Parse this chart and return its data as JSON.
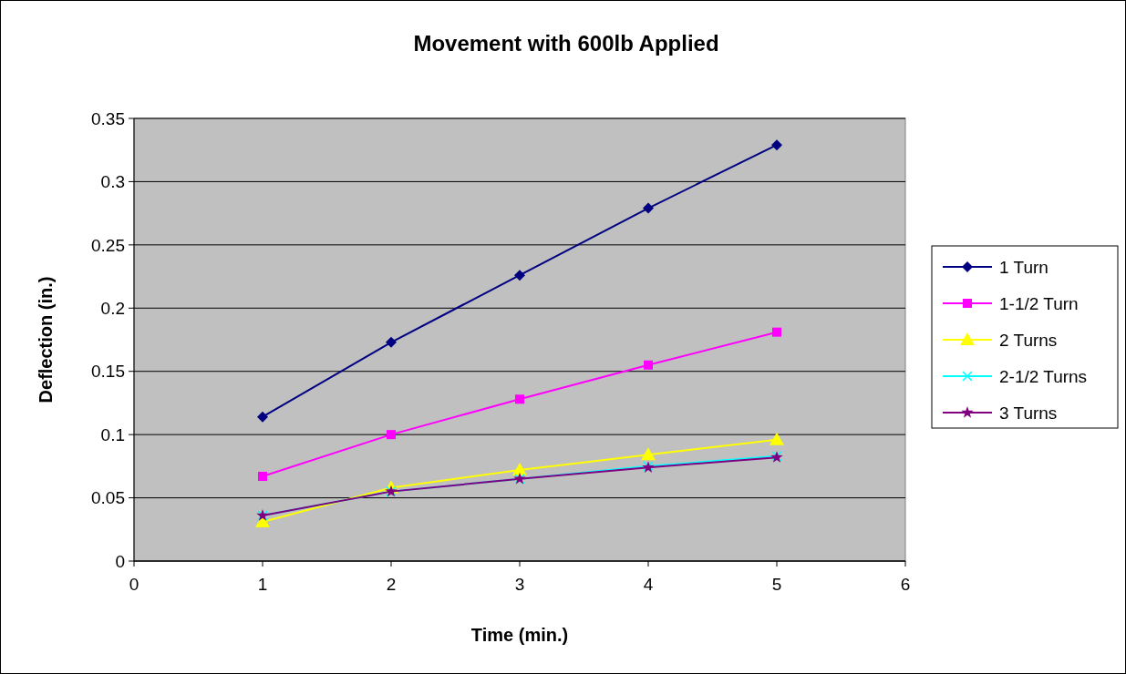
{
  "chart_data": {
    "type": "line",
    "title": "Movement with 600lb Applied",
    "xlabel": "Time (min.)",
    "ylabel": "Deflection (in.)",
    "x": [
      1,
      2,
      3,
      4,
      5
    ],
    "xlim": [
      0,
      6
    ],
    "xticks": [
      0,
      1,
      2,
      3,
      4,
      5,
      6
    ],
    "ylim": [
      0,
      0.35
    ],
    "yticks": [
      0,
      0.05,
      0.1,
      0.15,
      0.2,
      0.25,
      0.3,
      0.35
    ],
    "grid": "y",
    "legend": "right",
    "series": [
      {
        "name": "1 Turn",
        "color": "#000080",
        "marker": "diamond",
        "values": [
          0.114,
          0.173,
          0.226,
          0.279,
          0.329
        ]
      },
      {
        "name": "1-1/2 Turn",
        "color": "#ff00ff",
        "marker": "square",
        "values": [
          0.067,
          0.1,
          0.128,
          0.155,
          0.181
        ]
      },
      {
        "name": "2 Turns",
        "color": "#ffff00",
        "marker": "triangle",
        "values": [
          0.031,
          0.058,
          0.072,
          0.084,
          0.096
        ]
      },
      {
        "name": "2-1/2 Turns",
        "color": "#00ffff",
        "marker": "cross",
        "values": [
          0.036,
          0.055,
          0.065,
          0.075,
          0.083
        ]
      },
      {
        "name": "3 Turns",
        "color": "#800080",
        "marker": "star",
        "values": [
          0.036,
          0.055,
          0.065,
          0.074,
          0.082
        ]
      }
    ]
  }
}
